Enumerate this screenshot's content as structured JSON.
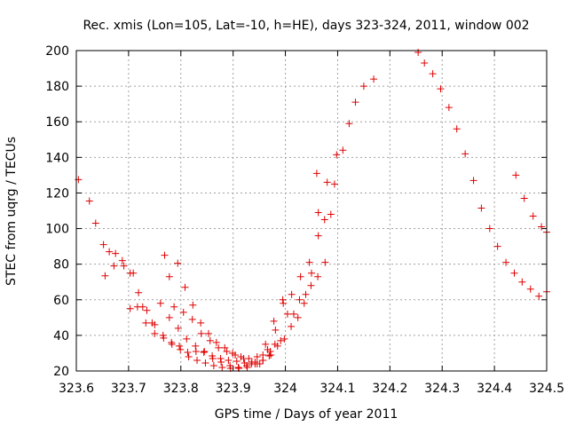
{
  "chart_data": {
    "type": "scatter",
    "title": "Rec. xmis (Lon=105, Lat=-10, h=HE), days 323-324, 2011, window 002",
    "xlabel": "GPS time / Days of year 2011",
    "ylabel": "STEC from uqrg / TECUs",
    "xlim": [
      323.6,
      324.5
    ],
    "ylim": [
      20,
      200
    ],
    "xticks": [
      "323.6",
      "323.7",
      "323.8",
      "323.9",
      "324",
      "324.1",
      "324.2",
      "324.3",
      "324.4",
      "324.5"
    ],
    "xtick_values": [
      323.6,
      323.7,
      323.8,
      323.9,
      324.0,
      324.1,
      324.2,
      324.3,
      324.4,
      324.5
    ],
    "yticks": [
      "20",
      "40",
      "60",
      "80",
      "100",
      "120",
      "140",
      "160",
      "180",
      "200"
    ],
    "ytick_values": [
      20,
      40,
      60,
      80,
      100,
      120,
      140,
      160,
      180,
      200
    ],
    "grid": true,
    "marker": "plus",
    "color": "#e00000",
    "series": [
      {
        "points": [
          [
            323.604,
            127.5
          ],
          [
            323.625,
            115.5
          ],
          [
            323.637,
            103
          ],
          [
            323.652,
            91
          ],
          [
            323.663,
            87
          ],
          [
            323.675,
            86
          ],
          [
            323.688,
            82
          ],
          [
            323.703,
            75
          ],
          [
            323.719,
            64
          ],
          [
            323.735,
            54
          ],
          [
            323.75,
            46
          ],
          [
            323.766,
            40
          ],
          [
            323.782,
            36
          ],
          [
            323.797,
            34
          ],
          [
            323.813,
            30.5
          ],
          [
            323.829,
            31
          ],
          [
            323.844,
            30.5
          ],
          [
            323.86,
            28.5
          ],
          [
            323.876,
            27
          ],
          [
            323.891,
            26
          ],
          [
            323.907,
            25.5
          ],
          [
            323.922,
            24.5
          ],
          [
            323.935,
            24
          ],
          [
            323.946,
            24
          ],
          [
            323.957,
            26
          ],
          [
            323.969,
            28.5
          ],
          [
            323.98,
            35
          ],
          [
            323.991,
            37
          ],
          [
            324.004,
            52
          ],
          [
            324.016,
            52
          ],
          [
            324.027,
            60
          ],
          [
            324.039,
            63
          ],
          [
            324.05,
            75
          ],
          [
            324.063,
            96
          ],
          [
            324.075,
            105
          ],
          [
            324.087,
            108
          ],
          [
            324.098,
            141.5
          ],
          [
            324.11,
            144
          ],
          [
            324.122,
            159
          ],
          [
            324.134,
            171
          ],
          [
            324.15,
            180
          ],
          [
            324.169,
            184
          ],
          [
            324.254,
            199
          ],
          [
            324.266,
            193
          ],
          [
            324.282,
            187
          ],
          [
            324.297,
            178.5
          ],
          [
            324.313,
            168
          ],
          [
            324.328,
            156
          ],
          [
            324.344,
            142
          ],
          [
            324.36,
            127
          ],
          [
            324.375,
            111.5
          ],
          [
            324.391,
            100
          ],
          [
            324.406,
            90
          ],
          [
            324.422,
            81
          ],
          [
            324.438,
            75
          ],
          [
            324.453,
            70
          ],
          [
            324.469,
            66
          ],
          [
            324.485,
            62
          ],
          [
            324.5,
            64.5
          ],
          [
            324.441,
            130
          ],
          [
            324.457,
            117
          ],
          [
            324.474,
            107
          ],
          [
            324.49,
            101
          ],
          [
            324.5,
            98
          ]
        ]
      },
      {
        "points": [
          [
            323.655,
            73.5
          ],
          [
            323.672,
            79
          ],
          [
            323.691,
            79
          ],
          [
            323.709,
            75
          ],
          [
            323.727,
            56
          ],
          [
            323.745,
            47
          ],
          [
            323.761,
            58
          ],
          [
            323.778,
            50
          ],
          [
            323.795,
            44
          ],
          [
            323.811,
            38
          ],
          [
            323.828,
            34
          ],
          [
            323.845,
            31
          ],
          [
            323.861,
            27
          ],
          [
            323.877,
            25
          ],
          [
            323.894,
            23
          ],
          [
            323.91,
            22
          ],
          [
            323.926,
            23
          ],
          [
            323.942,
            25
          ],
          [
            323.957,
            29
          ],
          [
            323.971,
            31
          ],
          [
            323.985,
            34
          ],
          [
            323.998,
            38
          ],
          [
            324.011,
            45
          ],
          [
            324.024,
            50
          ],
          [
            324.036,
            58
          ],
          [
            324.049,
            68
          ],
          [
            324.062,
            73
          ],
          [
            324.076,
            81
          ]
        ]
      },
      {
        "points": [
          [
            323.703,
            55
          ],
          [
            323.717,
            56
          ],
          [
            323.733,
            47
          ],
          [
            323.75,
            41
          ],
          [
            323.767,
            38.5
          ],
          [
            323.783,
            35
          ],
          [
            323.799,
            32
          ],
          [
            323.815,
            28
          ],
          [
            323.831,
            26
          ],
          [
            323.847,
            24.5
          ],
          [
            323.863,
            23
          ],
          [
            323.879,
            22
          ],
          [
            323.895,
            21.5
          ],
          [
            323.911,
            21.5
          ],
          [
            323.927,
            22
          ],
          [
            323.942,
            24
          ],
          [
            323.957,
            26
          ],
          [
            323.972,
            29
          ]
        ]
      },
      {
        "points": [
          [
            323.769,
            85
          ],
          [
            323.787,
            56
          ],
          [
            323.805,
            53
          ],
          [
            323.822,
            49
          ],
          [
            323.839,
            41
          ],
          [
            323.856,
            37
          ],
          [
            323.872,
            33
          ],
          [
            323.888,
            31
          ],
          [
            323.904,
            29
          ],
          [
            323.92,
            27
          ],
          [
            323.936,
            25
          ],
          [
            323.951,
            24
          ],
          [
            323.966,
            32
          ],
          [
            323.981,
            43
          ],
          [
            323.996,
            58
          ],
          [
            324.012,
            63
          ],
          [
            324.029,
            73
          ],
          [
            324.046,
            81
          ],
          [
            324.063,
            109
          ],
          [
            324.08,
            126
          ]
        ]
      },
      {
        "points": [
          [
            323.778,
            73
          ],
          [
            323.794,
            80.5
          ],
          [
            323.808,
            67
          ],
          [
            323.823,
            57
          ],
          [
            323.838,
            47
          ],
          [
            323.853,
            41
          ],
          [
            323.868,
            36
          ],
          [
            323.884,
            33
          ],
          [
            323.899,
            30
          ],
          [
            323.915,
            28
          ],
          [
            323.93,
            27
          ],
          [
            323.946,
            28
          ],
          [
            323.962,
            35
          ],
          [
            323.978,
            48
          ],
          [
            323.995,
            60
          ],
          [
            324.06,
            131
          ],
          [
            324.094,
            125
          ]
        ]
      }
    ]
  }
}
